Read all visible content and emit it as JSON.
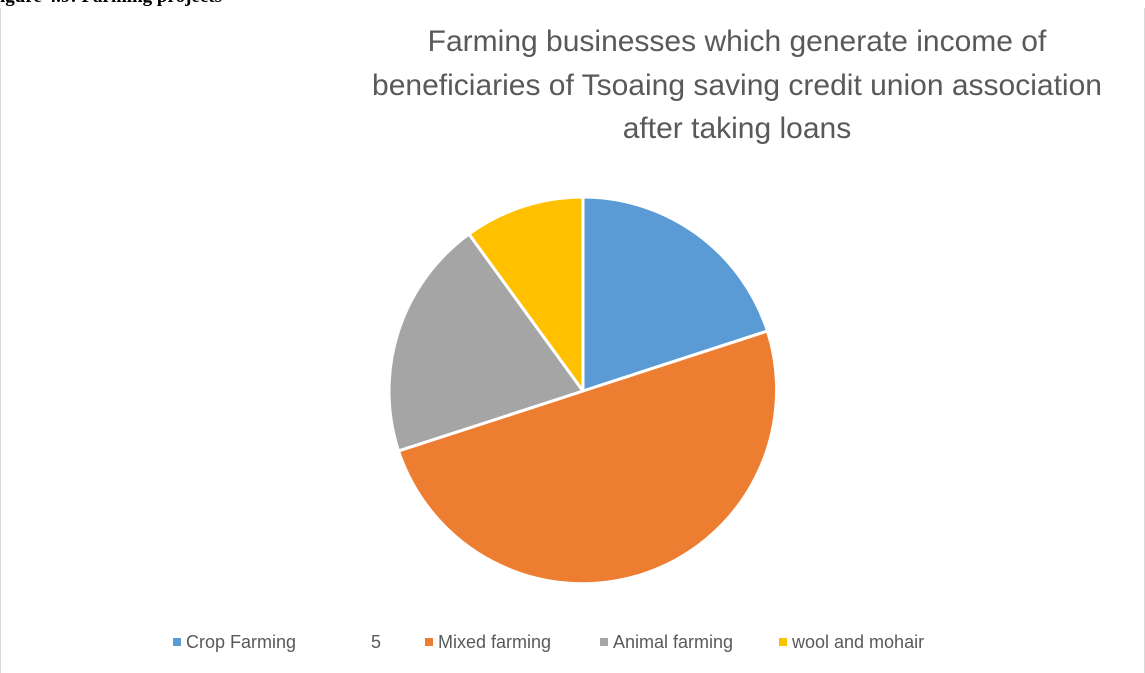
{
  "document": {
    "heading_fragment": "igure 4.9: Farming projects"
  },
  "chart_data": {
    "type": "pie",
    "title": [
      "Farming businesses which generate income of",
      "beneficiaries of Tsoaing saving credit union association",
      "after taking loans"
    ],
    "slices": [
      {
        "label": "Crop Farming",
        "value": 20,
        "color": "#5B9BD5"
      },
      {
        "label": "Mixed farming",
        "value": 50,
        "color": "#ED7D31"
      },
      {
        "label": "Animal farming",
        "value": 20,
        "color": "#A5A5A5"
      },
      {
        "label": "wool and mohair",
        "value": 10,
        "color": "#FFC000"
      }
    ],
    "legend": {
      "placement": "bottom",
      "stray_text": "5"
    }
  }
}
